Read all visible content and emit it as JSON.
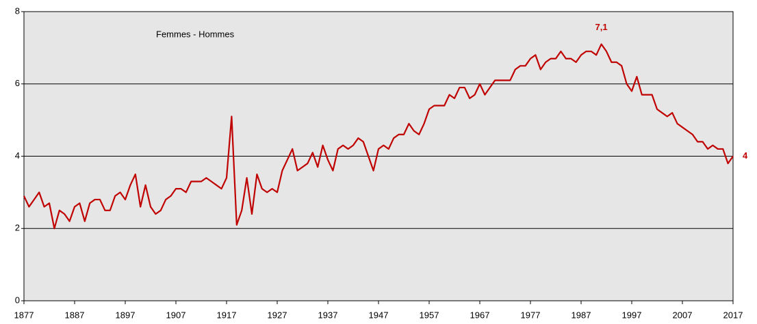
{
  "chart_data": {
    "type": "line",
    "x": [
      1877,
      1878,
      1879,
      1880,
      1881,
      1882,
      1883,
      1884,
      1885,
      1886,
      1887,
      1888,
      1889,
      1890,
      1891,
      1892,
      1893,
      1894,
      1895,
      1896,
      1897,
      1898,
      1899,
      1900,
      1901,
      1902,
      1903,
      1904,
      1905,
      1906,
      1907,
      1908,
      1909,
      1910,
      1911,
      1912,
      1913,
      1914,
      1915,
      1916,
      1917,
      1918,
      1919,
      1920,
      1921,
      1922,
      1923,
      1924,
      1925,
      1926,
      1927,
      1928,
      1929,
      1930,
      1931,
      1932,
      1933,
      1934,
      1935,
      1936,
      1937,
      1938,
      1939,
      1940,
      1941,
      1942,
      1943,
      1944,
      1945,
      1946,
      1947,
      1948,
      1949,
      1950,
      1951,
      1952,
      1953,
      1954,
      1955,
      1956,
      1957,
      1958,
      1959,
      1960,
      1961,
      1962,
      1963,
      1964,
      1965,
      1966,
      1967,
      1968,
      1969,
      1970,
      1971,
      1972,
      1973,
      1974,
      1975,
      1976,
      1977,
      1978,
      1979,
      1980,
      1981,
      1982,
      1983,
      1984,
      1985,
      1986,
      1987,
      1988,
      1989,
      1990,
      1991,
      1992,
      1993,
      1994,
      1995,
      1996,
      1997,
      1998,
      1999,
      2000,
      2001,
      2002,
      2003,
      2004,
      2005,
      2006,
      2007,
      2008,
      2009,
      2010,
      2011,
      2012,
      2013,
      2014,
      2015,
      2016,
      2017
    ],
    "series": [
      {
        "name": "Femmes - Hommes",
        "color": "#c00000",
        "values": [
          2.9,
          2.6,
          2.8,
          3.0,
          2.6,
          2.7,
          2.0,
          2.5,
          2.4,
          2.2,
          2.6,
          2.7,
          2.2,
          2.7,
          2.8,
          2.8,
          2.5,
          2.5,
          2.9,
          3.0,
          2.8,
          3.2,
          3.5,
          2.6,
          3.2,
          2.6,
          2.4,
          2.5,
          2.8,
          2.9,
          3.1,
          3.1,
          3.0,
          3.3,
          3.3,
          3.3,
          3.4,
          3.3,
          3.2,
          3.1,
          3.4,
          5.1,
          2.1,
          2.5,
          3.4,
          2.4,
          3.5,
          3.1,
          3.0,
          3.1,
          3.0,
          3.6,
          3.9,
          4.2,
          3.6,
          3.7,
          3.8,
          4.1,
          3.7,
          4.3,
          3.9,
          3.6,
          4.2,
          4.3,
          4.2,
          4.3,
          4.5,
          4.4,
          4.0,
          3.6,
          4.2,
          4.3,
          4.2,
          4.5,
          4.6,
          4.6,
          4.9,
          4.7,
          4.6,
          4.9,
          5.3,
          5.4,
          5.4,
          5.4,
          5.7,
          5.6,
          5.9,
          5.9,
          5.6,
          5.7,
          6.0,
          5.7,
          5.9,
          6.1,
          6.1,
          6.1,
          6.1,
          6.4,
          6.5,
          6.5,
          6.7,
          6.8,
          6.4,
          6.6,
          6.7,
          6.7,
          6.9,
          6.7,
          6.7,
          6.6,
          6.8,
          6.9,
          6.9,
          6.8,
          7.1,
          6.9,
          6.6,
          6.6,
          6.5,
          6.0,
          5.8,
          6.2,
          5.7,
          5.7,
          5.7,
          5.3,
          5.2,
          5.1,
          5.2,
          4.9,
          4.8,
          4.7,
          4.6,
          4.4,
          4.4,
          4.2,
          4.3,
          4.2,
          4.2,
          3.8,
          4.0
        ]
      }
    ],
    "xlim": [
      1877,
      2017
    ],
    "xticks": [
      1877,
      1887,
      1897,
      1907,
      1917,
      1927,
      1937,
      1947,
      1957,
      1967,
      1977,
      1987,
      1997,
      2007,
      2017
    ],
    "ylim": [
      0,
      8
    ],
    "yticks": [
      0,
      2,
      4,
      6,
      8
    ],
    "grid": true,
    "annotations": [
      {
        "text": "7,1",
        "x": 1991,
        "y": 7.1
      },
      {
        "text": "4",
        "x": 2017,
        "y": 4
      }
    ]
  }
}
